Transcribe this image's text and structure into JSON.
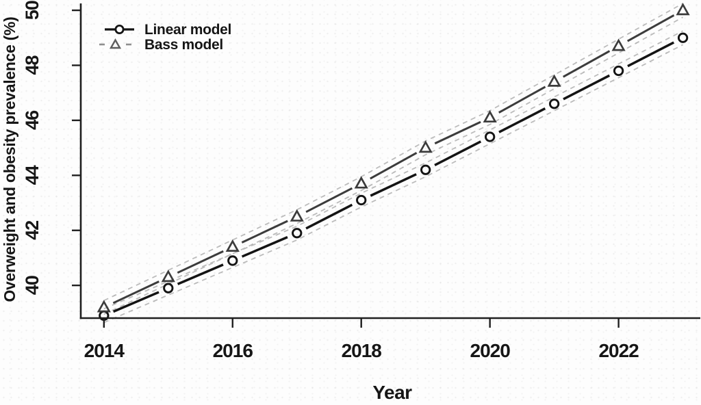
{
  "chart_data": {
    "type": "line",
    "title": "",
    "xlabel": "Year",
    "ylabel": "Overweight and obesity prevalence (%)",
    "x": [
      2014,
      2015,
      2016,
      2017,
      2018,
      2019,
      2020,
      2021,
      2022,
      2023
    ],
    "series": [
      {
        "name": "Linear model",
        "marker": "circle",
        "line_style": "solid",
        "color": "#141414",
        "values": [
          38.9,
          39.9,
          40.9,
          41.9,
          43.1,
          44.2,
          45.4,
          46.6,
          47.8,
          49.0
        ]
      },
      {
        "name": "Bass model",
        "marker": "triangle",
        "line_style": "solid",
        "color": "#3c3c3c",
        "values": [
          39.2,
          40.3,
          41.4,
          42.5,
          43.7,
          45.0,
          46.1,
          47.4,
          48.7,
          50.0
        ]
      }
    ],
    "confidence_band": {
      "offset": 0.25,
      "color": "#bcbcbc",
      "dash": "7 6",
      "width": 1.8
    },
    "x_ticks": [
      2014,
      2016,
      2018,
      2020,
      2022
    ],
    "y_ticks": [
      40,
      42,
      44,
      46,
      48,
      50
    ],
    "xlim": [
      2013.64,
      2023.26
    ],
    "ylim": [
      38.81,
      50.25
    ],
    "grid": false,
    "legend": {
      "position": "top-left",
      "items": [
        {
          "label": "Linear model",
          "sample": "line-circle",
          "sample_color": "#141414"
        },
        {
          "label": "Bass model",
          "sample": "dash-triangle",
          "sample_color": "#8f8f8f",
          "triangle_color": "#5f5f5f"
        }
      ]
    },
    "colors": {
      "axis": "#1f1f1f",
      "background": "#fdfdfd"
    }
  }
}
